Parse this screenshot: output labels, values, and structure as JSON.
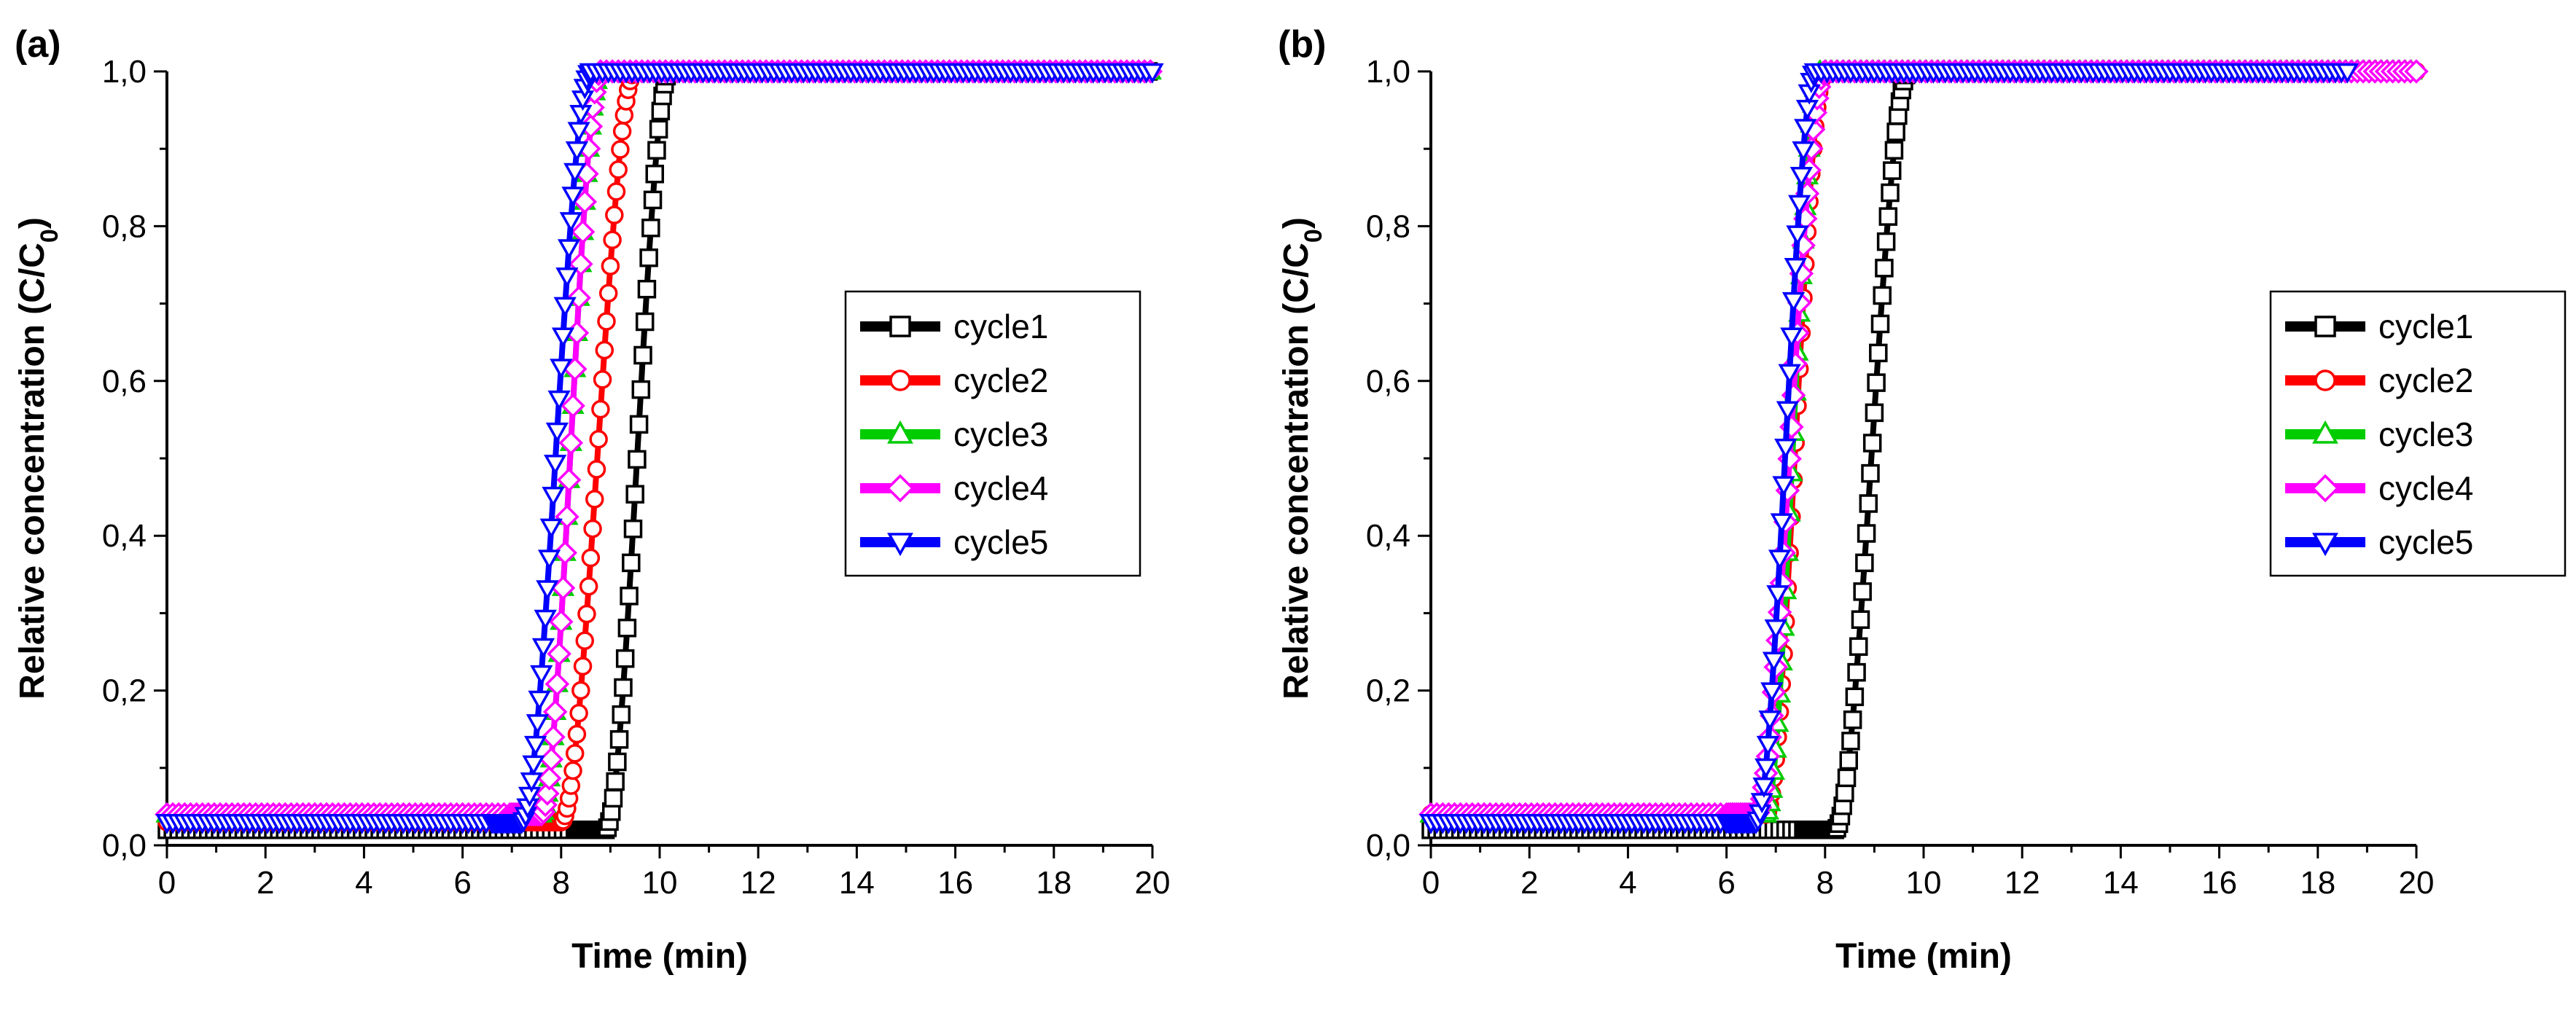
{
  "figure": {
    "panels": [
      "(a)",
      "(b)"
    ]
  },
  "chart_data": [
    {
      "type": "scatter",
      "panel_label": "(a)",
      "title": "",
      "xlabel": "Time (min)",
      "ylabel_main": "Relative concentration (C/C",
      "ylabel_sub": "0",
      "ylabel_end": ")",
      "xlim": [
        0,
        20
      ],
      "ylim": [
        0,
        1.0
      ],
      "xticks": [
        "0",
        "2",
        "4",
        "6",
        "8",
        "10",
        "12",
        "14",
        "16",
        "18",
        "20"
      ],
      "yticks": [
        "0,0",
        "0,2",
        "0,4",
        "0,6",
        "0,8",
        "1,0"
      ],
      "legend_position": "right-middle",
      "series": [
        {
          "name": "cycle1",
          "color": "#000000",
          "marker": "square",
          "baseline": 0.02,
          "t_start": 8.9,
          "t_end": 10.2,
          "end_x": 20
        },
        {
          "name": "cycle2",
          "color": "#ff0000",
          "marker": "circle",
          "baseline": 0.03,
          "t_start": 8.0,
          "t_end": 9.5,
          "end_x": 20
        },
        {
          "name": "cycle3",
          "color": "#00cc00",
          "marker": "triangle-up",
          "baseline": 0.04,
          "t_start": 7.6,
          "t_end": 8.8,
          "end_x": 20
        },
        {
          "name": "cycle4",
          "color": "#ff00ff",
          "marker": "diamond",
          "baseline": 0.04,
          "t_start": 7.6,
          "t_end": 8.8,
          "end_x": 20
        },
        {
          "name": "cycle5",
          "color": "#0000ff",
          "marker": "triangle-down",
          "baseline": 0.03,
          "t_start": 7.2,
          "t_end": 8.6,
          "end_x": 20
        }
      ]
    },
    {
      "type": "scatter",
      "panel_label": "(b)",
      "title": "",
      "xlabel": "Time (min)",
      "ylabel_main": "Relative concentration (C/C",
      "ylabel_sub": "0",
      "ylabel_end": ")",
      "xlim": [
        0,
        20
      ],
      "ylim": [
        0,
        1.0
      ],
      "xticks": [
        "0",
        "2",
        "4",
        "6",
        "8",
        "10",
        "12",
        "14",
        "16",
        "18",
        "20"
      ],
      "yticks": [
        "0,0",
        "0,2",
        "0,4",
        "0,6",
        "0,8",
        "1,0"
      ],
      "legend_position": "right-middle",
      "series": [
        {
          "name": "cycle1",
          "color": "#000000",
          "marker": "square",
          "baseline": 0.02,
          "t_start": 8.2,
          "t_end": 9.7,
          "end_x": 9.7
        },
        {
          "name": "cycle2",
          "color": "#ff0000",
          "marker": "circle",
          "baseline": 0.04,
          "t_start": 6.8,
          "t_end": 8.0,
          "end_x": 20
        },
        {
          "name": "cycle3",
          "color": "#00cc00",
          "marker": "triangle-up",
          "baseline": 0.04,
          "t_start": 6.8,
          "t_end": 7.9,
          "end_x": 20
        },
        {
          "name": "cycle4",
          "color": "#ff00ff",
          "marker": "diamond",
          "baseline": 0.04,
          "t_start": 6.6,
          "t_end": 8.0,
          "end_x": 20
        },
        {
          "name": "cycle5",
          "color": "#0000ff",
          "marker": "triangle-down",
          "baseline": 0.03,
          "t_start": 6.6,
          "t_end": 7.8,
          "end_x": 18.6
        }
      ]
    }
  ]
}
